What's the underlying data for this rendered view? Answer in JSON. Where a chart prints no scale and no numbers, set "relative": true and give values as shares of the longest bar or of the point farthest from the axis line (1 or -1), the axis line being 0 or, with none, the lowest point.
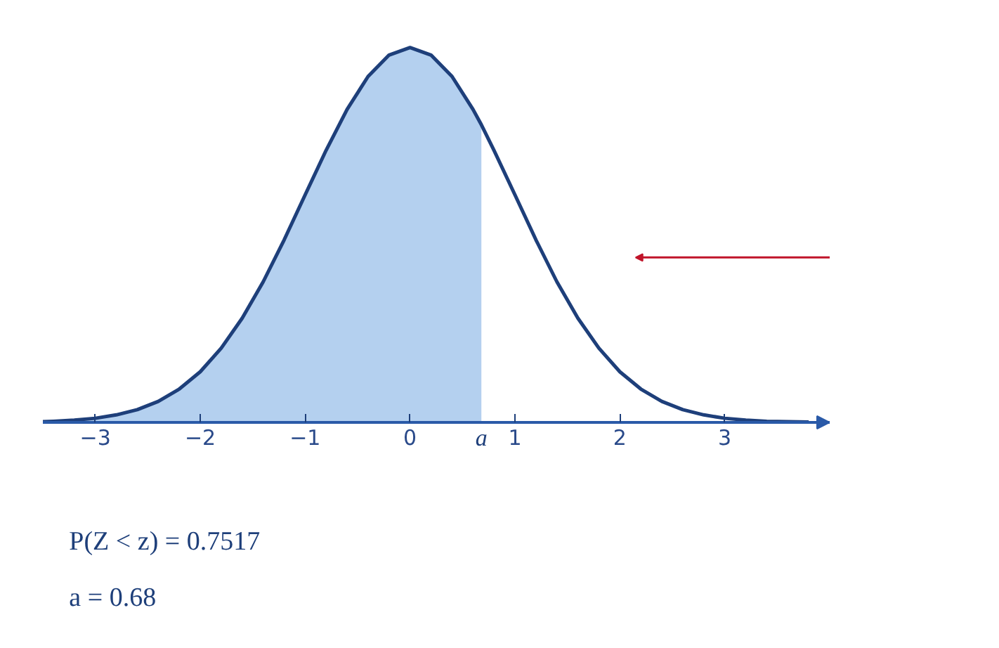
{
  "chart_data": {
    "type": "line",
    "relative": true,
    "xlim": [
      -3.5,
      4.0
    ],
    "xticks": [
      {
        "value": -3,
        "label": "−3"
      },
      {
        "value": -2,
        "label": "−2"
      },
      {
        "value": -1,
        "label": "−1"
      },
      0,
      1,
      2,
      3
    ],
    "series": [
      {
        "type": "area",
        "color": "#b4d0ef",
        "x": [
          -3.5,
          -3.4,
          -3.2,
          -3.0,
          -2.8,
          -2.6,
          -2.4,
          -2.2,
          -2.0,
          -1.8,
          -1.6,
          -1.4,
          -1.2,
          -1.0,
          -0.8,
          -0.6,
          -0.4,
          -0.2,
          0,
          0.2,
          0.4,
          0.6,
          0.68
        ],
        "values": [
          0.002,
          0.003,
          0.006,
          0.011,
          0.02,
          0.034,
          0.056,
          0.089,
          0.135,
          0.198,
          0.278,
          0.375,
          0.487,
          0.607,
          0.726,
          0.835,
          0.923,
          0.98,
          1,
          0.98,
          0.923,
          0.835,
          0.794
        ]
      },
      {
        "color": "#1e3f7a",
        "x": [
          -3.5,
          -3.4,
          -3.2,
          -3.0,
          -2.8,
          -2.6,
          -2.4,
          -2.2,
          -2.0,
          -1.8,
          -1.6,
          -1.4,
          -1.2,
          -1.0,
          -0.8,
          -0.6,
          -0.4,
          -0.2,
          0,
          0.2,
          0.4,
          0.6,
          0.68,
          0.8,
          1.0,
          1.2,
          1.4,
          1.6,
          1.8,
          2.0,
          2.2,
          2.4,
          2.6,
          2.8,
          3.0,
          3.2,
          3.4,
          3.6,
          3.8
        ],
        "values": [
          0.002,
          0.003,
          0.006,
          0.011,
          0.02,
          0.034,
          0.056,
          0.089,
          0.135,
          0.198,
          0.278,
          0.375,
          0.487,
          0.607,
          0.726,
          0.835,
          0.923,
          0.98,
          1,
          0.98,
          0.923,
          0.835,
          0.794,
          0.726,
          0.607,
          0.487,
          0.375,
          0.278,
          0.198,
          0.135,
          0.089,
          0.056,
          0.034,
          0.02,
          0.011,
          0.006,
          0.003,
          0.002,
          0.001
        ]
      }
    ],
    "annotations": [
      {
        "text": "a",
        "x": 0.68,
        "y": 0
      },
      "P(Z < z) = 0.7517",
      "a = 0.68"
    ]
  }
}
